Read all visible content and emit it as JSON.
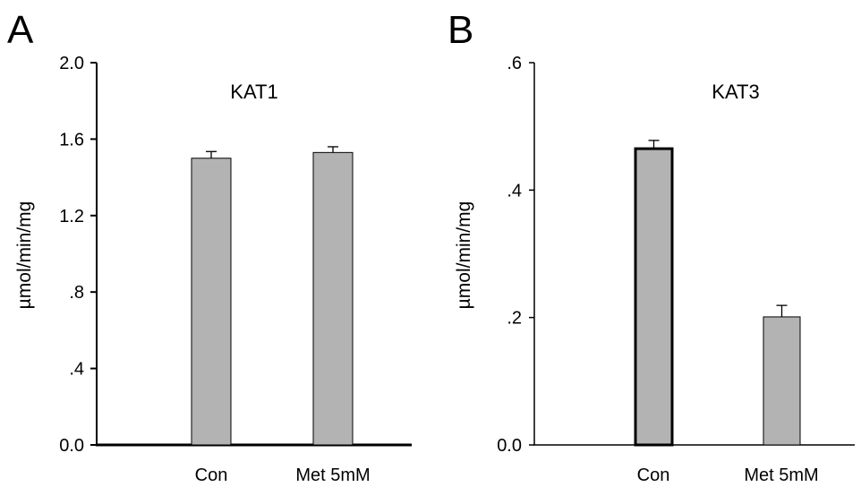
{
  "chart_data": [
    {
      "type": "bar",
      "panel_label": "A",
      "title": "KAT1",
      "ylabel": "µmol/min/mg",
      "xlabel": "",
      "categories": [
        "Con",
        "Met 5mM"
      ],
      "values": [
        1.5,
        1.53
      ],
      "errors": [
        0.035,
        0.03
      ],
      "ylim": [
        0,
        2.0
      ],
      "yticks": [
        "0.0",
        ".4",
        ".8",
        "1.2",
        "1.6",
        "2.0"
      ],
      "ytick_values": [
        0,
        0.4,
        0.8,
        1.2,
        1.6,
        2.0
      ],
      "grid": false,
      "bar_color": "#b3b3b3"
    },
    {
      "type": "bar",
      "panel_label": "B",
      "title": "KAT3",
      "ylabel": "µmol/min/mg",
      "xlabel": "",
      "categories": [
        "Con",
        "Met 5mM"
      ],
      "values": [
        0.465,
        0.201
      ],
      "errors": [
        0.013,
        0.018
      ],
      "ylim": [
        0,
        0.6
      ],
      "yticks": [
        "0.0",
        ".2",
        ".4",
        ".6"
      ],
      "ytick_values": [
        0,
        0.2,
        0.4,
        0.6
      ],
      "grid": false,
      "bar_color": "#b3b3b3"
    }
  ]
}
